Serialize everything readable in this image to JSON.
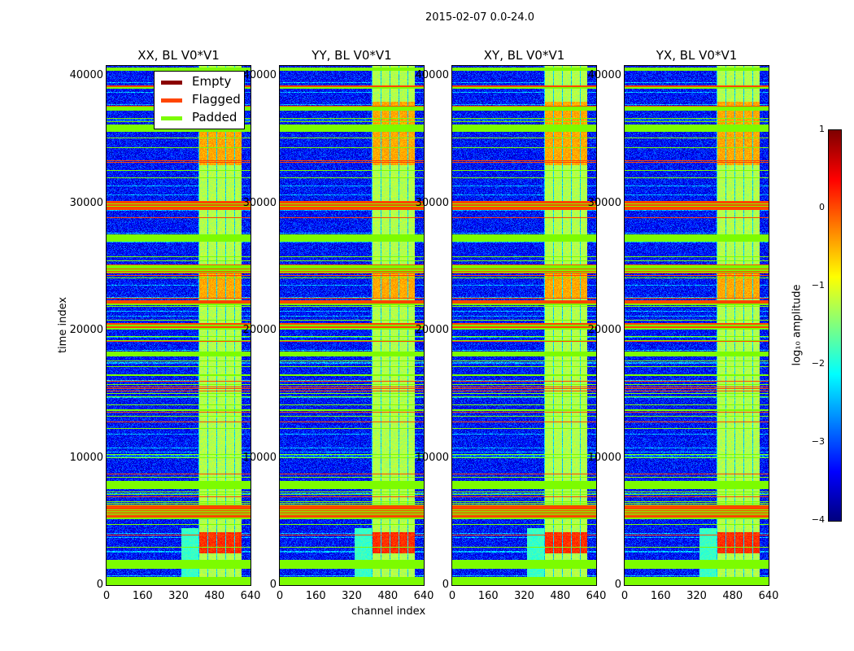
{
  "chart_data": {
    "type": "heatmap",
    "title": "2015-02-07 0.0-24.0",
    "xlabel": "channel index",
    "ylabel": "time index",
    "xlim": [
      0,
      640
    ],
    "ylim": [
      0,
      40770
    ],
    "xticks": [
      "0",
      "160",
      "320",
      "480",
      "640"
    ],
    "yticks": [
      "0",
      "10000",
      "20000",
      "30000",
      "40000"
    ],
    "panels": [
      {
        "title": "XX, BL V0*V1"
      },
      {
        "title": "YY, BL V0*V1"
      },
      {
        "title": "XY, BL V0*V1"
      },
      {
        "title": "YX, BL V0*V1"
      }
    ],
    "colorbar": {
      "label": "log₁₀ amplitude",
      "range": [
        -4,
        1
      ],
      "ticks": [
        "1",
        "0",
        "−1",
        "−2",
        "−3",
        "−4"
      ],
      "colormap": "jet"
    },
    "legend": [
      {
        "label": "Empty",
        "color": "#8b0000"
      },
      {
        "label": "Flagged",
        "color": "#ff4500"
      },
      {
        "label": "Padded",
        "color": "#7cfc00"
      }
    ],
    "background_log_amplitude": -3.2,
    "active_channel_range": [
      405,
      600
    ],
    "flagged_time_ranges": [
      [
        5200,
        6300
      ],
      [
        20100,
        20600
      ],
      [
        22000,
        22400
      ],
      [
        24500,
        25200
      ],
      [
        29500,
        30200
      ],
      [
        39000,
        39300
      ],
      [
        40400,
        40700
      ]
    ],
    "padded_time_ranges": [
      [
        0,
        700
      ],
      [
        1300,
        2000
      ],
      [
        7600,
        8200
      ],
      [
        18000,
        18400
      ],
      [
        27000,
        27500
      ],
      [
        35600,
        36200
      ],
      [
        37300,
        37600
      ]
    ]
  }
}
